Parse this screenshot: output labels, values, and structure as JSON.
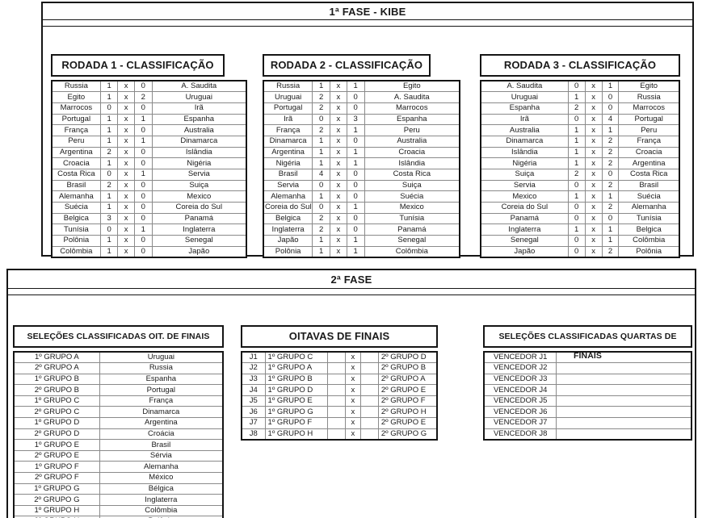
{
  "fase1": {
    "title": "1ª FASE - KIBE",
    "rodadas": [
      {
        "title": "RODADA 1 - CLASSIFICAÇÃO",
        "matches": [
          [
            "Russia",
            "1",
            "x",
            "0",
            "A. Saudita"
          ],
          [
            "Egito",
            "1",
            "x",
            "2",
            "Uruguai"
          ],
          [
            "Marrocos",
            "0",
            "x",
            "0",
            "Irã"
          ],
          [
            "Portugal",
            "1",
            "x",
            "1",
            "Espanha"
          ],
          [
            "França",
            "1",
            "x",
            "0",
            "Australia"
          ],
          [
            "Peru",
            "1",
            "x",
            "1",
            "Dinamarca"
          ],
          [
            "Argentina",
            "2",
            "x",
            "0",
            "Islândia"
          ],
          [
            "Croacia",
            "1",
            "x",
            "0",
            "Nigéria"
          ],
          [
            "Costa Rica",
            "0",
            "x",
            "1",
            "Servia"
          ],
          [
            "Brasil",
            "2",
            "x",
            "0",
            "Suiça"
          ],
          [
            "Alemanha",
            "1",
            "x",
            "0",
            "Mexico"
          ],
          [
            "Suécia",
            "1",
            "x",
            "0",
            "Coreia do Sul"
          ],
          [
            "Belgica",
            "3",
            "x",
            "0",
            "Panamá"
          ],
          [
            "Tunísia",
            "0",
            "x",
            "1",
            "Inglaterra"
          ],
          [
            "Polônia",
            "1",
            "x",
            "0",
            "Senegal"
          ],
          [
            "Colômbia",
            "1",
            "x",
            "0",
            "Japão"
          ]
        ]
      },
      {
        "title": "RODADA 2 - CLASSIFICAÇÃO",
        "matches": [
          [
            "Russia",
            "1",
            "x",
            "1",
            "Egito"
          ],
          [
            "Uruguai",
            "2",
            "x",
            "0",
            "A. Saudita"
          ],
          [
            "Portugal",
            "2",
            "x",
            "0",
            "Marrocos"
          ],
          [
            "Irã",
            "0",
            "x",
            "3",
            "Espanha"
          ],
          [
            "França",
            "2",
            "x",
            "1",
            "Peru"
          ],
          [
            "Dinamarca",
            "1",
            "x",
            "0",
            "Australia"
          ],
          [
            "Argentina",
            "1",
            "x",
            "1",
            "Croacia"
          ],
          [
            "Nigéria",
            "1",
            "x",
            "1",
            "Islândia"
          ],
          [
            "Brasil",
            "4",
            "x",
            "0",
            "Costa Rica"
          ],
          [
            "Servia",
            "0",
            "x",
            "0",
            "Suiça"
          ],
          [
            "Alemanha",
            "1",
            "x",
            "0",
            "Suécia"
          ],
          [
            "Coreia do Sul",
            "0",
            "x",
            "1",
            "Mexico"
          ],
          [
            "Belgica",
            "2",
            "x",
            "0",
            "Tunísia"
          ],
          [
            "Inglaterra",
            "2",
            "x",
            "0",
            "Panamá"
          ],
          [
            "Japão",
            "1",
            "x",
            "1",
            "Senegal"
          ],
          [
            "Polônia",
            "1",
            "x",
            "1",
            "Colômbia"
          ]
        ]
      },
      {
        "title": "RODADA 3 - CLASSIFICAÇÃO",
        "matches": [
          [
            "A. Saudita",
            "0",
            "x",
            "1",
            "Egito"
          ],
          [
            "Uruguai",
            "1",
            "x",
            "0",
            "Russia"
          ],
          [
            "Espanha",
            "2",
            "x",
            "0",
            "Marrocos"
          ],
          [
            "Irã",
            "0",
            "x",
            "4",
            "Portugal"
          ],
          [
            "Australia",
            "1",
            "x",
            "1",
            "Peru"
          ],
          [
            "Dinamarca",
            "1",
            "x",
            "2",
            "França"
          ],
          [
            "Islândia",
            "1",
            "x",
            "2",
            "Croacia"
          ],
          [
            "Nigéria",
            "1",
            "x",
            "2",
            "Argentina"
          ],
          [
            "Suiça",
            "2",
            "x",
            "0",
            "Costa Rica"
          ],
          [
            "Servia",
            "0",
            "x",
            "2",
            "Brasil"
          ],
          [
            "Mexico",
            "1",
            "x",
            "1",
            "Suécia"
          ],
          [
            "Coreia do Sul",
            "0",
            "x",
            "2",
            "Alemanha"
          ],
          [
            "Panamá",
            "0",
            "x",
            "0",
            "Tunísia"
          ],
          [
            "Inglaterra",
            "1",
            "x",
            "1",
            "Belgica"
          ],
          [
            "Senegal",
            "0",
            "x",
            "1",
            "Colômbia"
          ],
          [
            "Japão",
            "0",
            "x",
            "2",
            "Polônia"
          ]
        ]
      }
    ]
  },
  "fase2": {
    "title": "2ª FASE",
    "classificadas_oitavas": {
      "title": "SELEÇÕES CLASSIFICADAS OIT. DE FINAIS",
      "rows": [
        [
          "1º GRUPO A",
          "Uruguai"
        ],
        [
          "2º GRUPO A",
          "Russia"
        ],
        [
          "1º GRUPO B",
          "Espanha"
        ],
        [
          "2º GRUPO B",
          "Portugal"
        ],
        [
          "1º GRUPO C",
          "França"
        ],
        [
          "2º GRUPO C",
          "Dinamarca"
        ],
        [
          "1º GRUPO D",
          "Argentina"
        ],
        [
          "2º GRUPO D",
          "Croácia"
        ],
        [
          "1º GRUPO E",
          "Brasil"
        ],
        [
          "2º GRUPO E",
          "Sérvia"
        ],
        [
          "1º GRUPO F",
          "Alemanha"
        ],
        [
          "2º GRUPO F",
          "México"
        ],
        [
          "1º GRUPO G",
          "Bélgica"
        ],
        [
          "2º GRUPO G",
          "Inglaterra"
        ],
        [
          "1º GRUPO H",
          "Colômbia"
        ],
        [
          "2º GRUPO H",
          "Polônia"
        ]
      ]
    },
    "oitavas": {
      "title": "OITAVAS DE FINAIS",
      "rows": [
        [
          "J1",
          "1º GRUPO C",
          "",
          "x",
          "",
          "2º GRUPO D"
        ],
        [
          "J2",
          "1º GRUPO A",
          "",
          "x",
          "",
          "2º GRUPO B"
        ],
        [
          "J3",
          "1º GRUPO B",
          "",
          "x",
          "",
          "2º GRUPO A"
        ],
        [
          "J4",
          "1º GRUPO D",
          "",
          "x",
          "",
          "2º GRUPO E"
        ],
        [
          "J5",
          "1º GRUPO E",
          "",
          "x",
          "",
          "2º GRUPO F"
        ],
        [
          "J6",
          "1º GRUPO G",
          "",
          "x",
          "",
          "2º GRUPO H"
        ],
        [
          "J7",
          "1º GRUPO F",
          "",
          "x",
          "",
          "2º GRUPO E"
        ],
        [
          "J8",
          "1º GRUPO H",
          "",
          "x",
          "",
          "2º GRUPO G"
        ]
      ]
    },
    "classificadas_quartas": {
      "title": "SELEÇÕES CLASSIFICADAS QUARTAS DE FINAIS",
      "rows": [
        [
          "VENCEDOR J1",
          ""
        ],
        [
          "VENCEDOR J2",
          ""
        ],
        [
          "VENCEDOR J3",
          ""
        ],
        [
          "VENCEDOR J4",
          ""
        ],
        [
          "VENCEDOR J5",
          ""
        ],
        [
          "VENCEDOR J6",
          ""
        ],
        [
          "VENCEDOR J7",
          ""
        ],
        [
          "VENCEDOR J8",
          ""
        ]
      ]
    }
  }
}
